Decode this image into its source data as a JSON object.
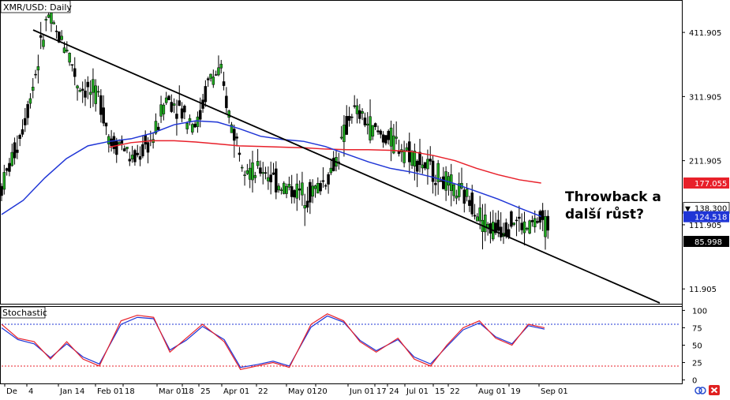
{
  "chart_data": [
    {
      "type": "candlestick",
      "title": "XMR/USD: Daily",
      "y_ticks": [
        411.905,
        311.905,
        211.905,
        111.905,
        11.905
      ],
      "ylim": [
        -10,
        460
      ],
      "x_ticks": [
        "De",
        "4",
        "Jan 14",
        "Feb 01",
        "18",
        "Mar 01",
        "18",
        "25",
        "Apr 01",
        "22",
        "May 01",
        "20",
        "Jun 01",
        "17",
        "24",
        "Jul 01",
        "15",
        "22",
        "Aug 01",
        "19",
        "Sep 01"
      ],
      "price_labels": [
        {
          "value": 177.055,
          "text": "177.055",
          "color": "#e8202a"
        },
        {
          "value": 138.3,
          "text": "138.300",
          "color": "#000000"
        },
        {
          "value": 124.518,
          "text": "124.518",
          "color": "#1f35d6"
        },
        {
          "value": 85.998,
          "text": "85.998",
          "color": "#000000"
        }
      ],
      "annotation": [
        "Throwback a",
        "další růst?"
      ],
      "trendline": [
        {
          "x": 0.0,
          "y": 444
        },
        {
          "x": 1.0,
          "y": -5
        }
      ],
      "ma_fast": [
        [
          0.0,
          128
        ],
        [
          0.04,
          150
        ],
        [
          0.08,
          185
        ],
        [
          0.12,
          215
        ],
        [
          0.16,
          235
        ],
        [
          0.2,
          242
        ],
        [
          0.24,
          246
        ],
        [
          0.28,
          255
        ],
        [
          0.32,
          268
        ],
        [
          0.36,
          274
        ],
        [
          0.4,
          272
        ],
        [
          0.44,
          262
        ],
        [
          0.48,
          250
        ],
        [
          0.52,
          245
        ],
        [
          0.56,
          242
        ],
        [
          0.6,
          234
        ],
        [
          0.64,
          222
        ],
        [
          0.68,
          210
        ],
        [
          0.72,
          200
        ],
        [
          0.76,
          194
        ],
        [
          0.8,
          186
        ],
        [
          0.84,
          176
        ],
        [
          0.88,
          164
        ],
        [
          0.92,
          152
        ],
        [
          0.96,
          138
        ],
        [
          1.0,
          125
        ]
      ],
      "ma_slow": [
        [
          0.2,
          233
        ],
        [
          0.24,
          240
        ],
        [
          0.28,
          243
        ],
        [
          0.32,
          243
        ],
        [
          0.36,
          241
        ],
        [
          0.4,
          238
        ],
        [
          0.44,
          235
        ],
        [
          0.48,
          234
        ],
        [
          0.52,
          233
        ],
        [
          0.56,
          232
        ],
        [
          0.6,
          230
        ],
        [
          0.64,
          229
        ],
        [
          0.68,
          229
        ],
        [
          0.72,
          228
        ],
        [
          0.76,
          226
        ],
        [
          0.8,
          220
        ],
        [
          0.84,
          212
        ],
        [
          0.88,
          200
        ],
        [
          0.92,
          190
        ],
        [
          0.96,
          182
        ],
        [
          1.0,
          177
        ]
      ],
      "price_path": [
        [
          0.0,
          170
        ],
        [
          0.03,
          240
        ],
        [
          0.05,
          300
        ],
        [
          0.07,
          380
        ],
        [
          0.085,
          440
        ],
        [
          0.1,
          410
        ],
        [
          0.12,
          390
        ],
        [
          0.14,
          330
        ],
        [
          0.16,
          320
        ],
        [
          0.18,
          310
        ],
        [
          0.2,
          240
        ],
        [
          0.22,
          240
        ],
        [
          0.24,
          210
        ],
        [
          0.26,
          230
        ],
        [
          0.28,
          250
        ],
        [
          0.3,
          310
        ],
        [
          0.32,
          300
        ],
        [
          0.34,
          280
        ],
        [
          0.36,
          270
        ],
        [
          0.38,
          340
        ],
        [
          0.4,
          350
        ],
        [
          0.42,
          270
        ],
        [
          0.44,
          220
        ],
        [
          0.46,
          190
        ],
        [
          0.48,
          200
        ],
        [
          0.5,
          180
        ],
        [
          0.52,
          170
        ],
        [
          0.54,
          165
        ],
        [
          0.56,
          160
        ],
        [
          0.58,
          170
        ],
        [
          0.6,
          190
        ],
        [
          0.62,
          230
        ],
        [
          0.64,
          290
        ],
        [
          0.66,
          280
        ],
        [
          0.68,
          260
        ],
        [
          0.7,
          250
        ],
        [
          0.72,
          240
        ],
        [
          0.74,
          230
        ],
        [
          0.76,
          215
        ],
        [
          0.78,
          200
        ],
        [
          0.8,
          190
        ],
        [
          0.82,
          170
        ],
        [
          0.84,
          160
        ],
        [
          0.86,
          150
        ],
        [
          0.88,
          120
        ],
        [
          0.9,
          105
        ],
        [
          0.92,
          110
        ],
        [
          0.94,
          120
        ],
        [
          0.96,
          105
        ],
        [
          0.98,
          118
        ],
        [
          1.0,
          112
        ]
      ]
    },
    {
      "type": "line",
      "title": "Stochastic",
      "y_ticks": [
        100,
        75,
        50,
        25,
        0
      ],
      "ylim": [
        -5,
        105
      ],
      "levels": [
        {
          "value": 80,
          "color": "#1f35d6"
        },
        {
          "value": 20,
          "color": "#e8202a"
        }
      ],
      "series_red": [
        [
          0.0,
          80
        ],
        [
          0.03,
          60
        ],
        [
          0.06,
          55
        ],
        [
          0.09,
          30
        ],
        [
          0.12,
          55
        ],
        [
          0.15,
          30
        ],
        [
          0.18,
          20
        ],
        [
          0.22,
          85
        ],
        [
          0.25,
          93
        ],
        [
          0.28,
          90
        ],
        [
          0.31,
          40
        ],
        [
          0.34,
          60
        ],
        [
          0.37,
          80
        ],
        [
          0.41,
          55
        ],
        [
          0.44,
          15
        ],
        [
          0.47,
          20
        ],
        [
          0.5,
          25
        ],
        [
          0.53,
          18
        ],
        [
          0.57,
          80
        ],
        [
          0.6,
          95
        ],
        [
          0.63,
          85
        ],
        [
          0.66,
          55
        ],
        [
          0.69,
          40
        ],
        [
          0.73,
          60
        ],
        [
          0.76,
          30
        ],
        [
          0.79,
          20
        ],
        [
          0.82,
          50
        ],
        [
          0.85,
          75
        ],
        [
          0.88,
          85
        ],
        [
          0.91,
          60
        ],
        [
          0.94,
          50
        ],
        [
          0.97,
          80
        ],
        [
          1.0,
          75
        ]
      ],
      "series_blue": [
        [
          0.0,
          75
        ],
        [
          0.03,
          58
        ],
        [
          0.06,
          52
        ],
        [
          0.09,
          32
        ],
        [
          0.12,
          52
        ],
        [
          0.15,
          33
        ],
        [
          0.18,
          23
        ],
        [
          0.22,
          80
        ],
        [
          0.25,
          90
        ],
        [
          0.28,
          88
        ],
        [
          0.31,
          43
        ],
        [
          0.34,
          57
        ],
        [
          0.37,
          77
        ],
        [
          0.41,
          58
        ],
        [
          0.44,
          18
        ],
        [
          0.47,
          22
        ],
        [
          0.5,
          27
        ],
        [
          0.53,
          20
        ],
        [
          0.57,
          76
        ],
        [
          0.6,
          92
        ],
        [
          0.63,
          83
        ],
        [
          0.66,
          57
        ],
        [
          0.69,
          42
        ],
        [
          0.73,
          58
        ],
        [
          0.76,
          33
        ],
        [
          0.79,
          23
        ],
        [
          0.82,
          48
        ],
        [
          0.85,
          72
        ],
        [
          0.88,
          82
        ],
        [
          0.91,
          62
        ],
        [
          0.94,
          52
        ],
        [
          0.97,
          78
        ],
        [
          1.0,
          73
        ]
      ]
    }
  ],
  "ui": {
    "icon_names": [
      "sync-icon",
      "close-icon"
    ],
    "colors": {
      "accent_red": "#e8202a",
      "accent_blue": "#1f35d6",
      "sync_blue": "#2a4fd0"
    }
  }
}
